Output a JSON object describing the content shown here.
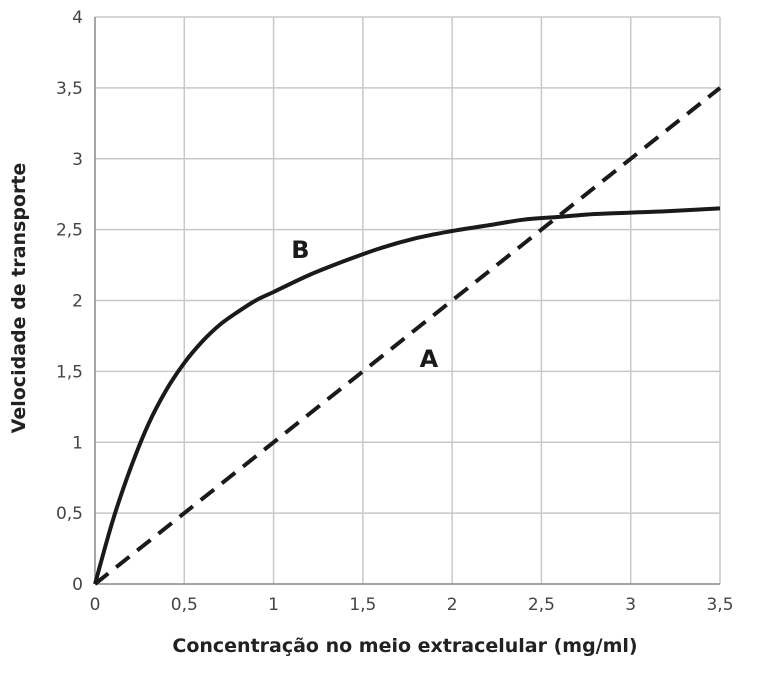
{
  "chart_data": {
    "type": "line",
    "title": "",
    "xlabel": "Concentração no meio extracelular (mg/ml)",
    "ylabel": "Velocidade de transporte",
    "xlim": [
      0,
      3.5
    ],
    "ylim": [
      0,
      4
    ],
    "grid": true,
    "legend": "none",
    "x_ticks": [
      "0",
      "0,5",
      "1",
      "1,5",
      "2",
      "2,5",
      "3",
      "3,5"
    ],
    "y_ticks": [
      "0",
      "0,5",
      "1",
      "1,5",
      "2",
      "2,5",
      "3",
      "3,5",
      "4"
    ],
    "x_tick_values": [
      0,
      0.5,
      1,
      1.5,
      2,
      2.5,
      3,
      3.5
    ],
    "y_tick_values": [
      0,
      0.5,
      1,
      1.5,
      2,
      2.5,
      3,
      3.5,
      4
    ],
    "series": [
      {
        "name": "A",
        "style": "dashed",
        "color": "#1a1a1a",
        "x": [
          0,
          0.5,
          1,
          1.5,
          2,
          2.5,
          3,
          3.5
        ],
        "y": [
          0,
          0.5,
          1,
          1.5,
          2,
          2.5,
          3,
          3.5
        ]
      },
      {
        "name": "B",
        "style": "solid",
        "color": "#1a1a1a",
        "x": [
          0,
          0.1,
          0.2,
          0.3,
          0.4,
          0.5,
          0.6,
          0.7,
          0.8,
          0.9,
          1.0,
          1.2,
          1.4,
          1.6,
          1.8,
          2.0,
          2.2,
          2.4,
          2.6,
          2.8,
          3.0,
          3.2,
          3.5
        ],
        "y": [
          0,
          0.45,
          0.82,
          1.13,
          1.37,
          1.56,
          1.71,
          1.83,
          1.92,
          2.0,
          2.06,
          2.18,
          2.28,
          2.37,
          2.44,
          2.49,
          2.53,
          2.57,
          2.59,
          2.61,
          2.62,
          2.63,
          2.65
        ]
      }
    ],
    "annotations": [
      {
        "text": "B",
        "x": 1.15,
        "y": 2.3
      },
      {
        "text": "A",
        "x": 1.87,
        "y": 1.53
      }
    ]
  }
}
